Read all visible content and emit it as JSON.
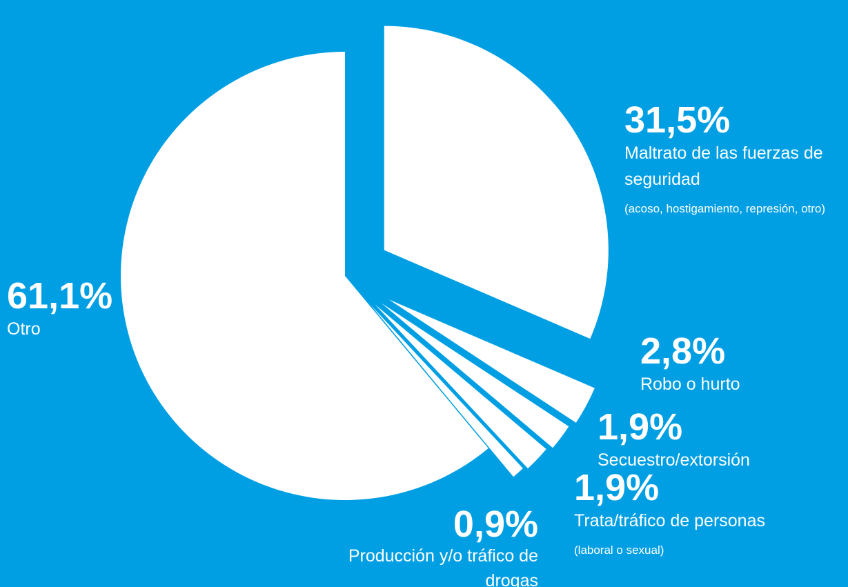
{
  "theme": {
    "background": "#009fe3",
    "slice_color": "#ffffff"
  },
  "chart_data": {
    "type": "pie",
    "title": "",
    "legend": "none",
    "slices": [
      {
        "percent_label": "31,5%",
        "value": 31.5,
        "label": "Maltrato de las fuerzas de seguridad",
        "label_lines": [
          "Maltrato de las fuerzas de",
          "seguridad"
        ],
        "note": "(acoso, hostigamiento, represión, otro)"
      },
      {
        "percent_label": "2,8%",
        "value": 2.8,
        "label": "Robo o hurto",
        "label_lines": [
          "Robo o hurto"
        ],
        "note": ""
      },
      {
        "percent_label": "1,9%",
        "value": 1.9,
        "label": "Secuestro/extorsión",
        "label_lines": [
          "Secuestro/extorsión"
        ],
        "note": ""
      },
      {
        "percent_label": "1,9%",
        "value": 1.9,
        "label": "Trata/tráfico de personas",
        "label_lines": [
          "Trata/tráfico de personas"
        ],
        "note": "(laboral o sexual)"
      },
      {
        "percent_label": "0,9%",
        "value": 0.9,
        "label": "Producción y/o tráfico de drogas",
        "label_lines": [
          "Producción y/o tráfico de",
          "drogas"
        ],
        "note": ""
      },
      {
        "percent_label": "61,1%",
        "value": 61.1,
        "label": "Otro",
        "label_lines": [
          "Otro"
        ],
        "note": ""
      }
    ]
  }
}
